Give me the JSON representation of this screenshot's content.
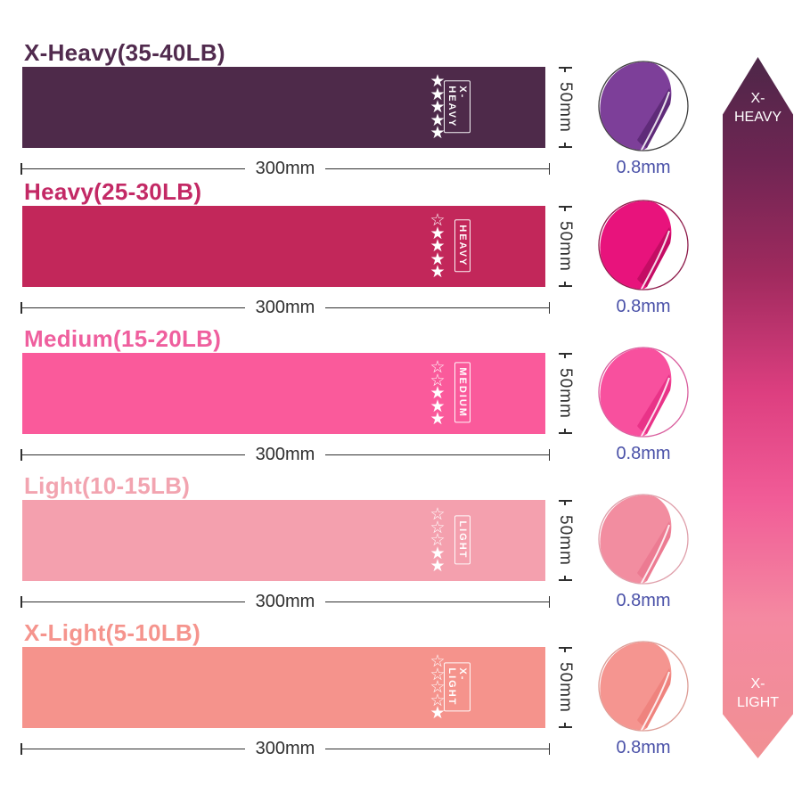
{
  "bands": [
    {
      "title": "X-Heavy(35-40LB)",
      "tag": "X-HEAVY",
      "stars_filled": 5,
      "stars_total": 5,
      "length_label": "300mm",
      "width_label": "50mm",
      "thickness_label": "0.8mm",
      "band_color": "#4e2a4a",
      "title_color": "#512b4e",
      "photo_main": "#7d3f99",
      "photo_dark": "#5f2b79",
      "photo_ring": "#3f3f3f"
    },
    {
      "title": "Heavy(25-30LB)",
      "tag": "HEAVY",
      "stars_filled": 4,
      "stars_total": 5,
      "length_label": "300mm",
      "width_label": "50mm",
      "thickness_label": "0.8mm",
      "band_color": "#c2275a",
      "title_color": "#c32965",
      "photo_main": "#e8137c",
      "photo_dark": "#c40c64",
      "photo_ring": "#8e1c4b"
    },
    {
      "title": "Medium(15-20LB)",
      "tag": "MEDIUM",
      "stars_filled": 3,
      "stars_total": 5,
      "length_label": "300mm",
      "width_label": "50mm",
      "thickness_label": "0.8mm",
      "band_color": "#fa5a9b",
      "title_color": "#ef5f9e",
      "photo_main": "#f8509e",
      "photo_dark": "#e93388",
      "photo_ring": "#d95f9e"
    },
    {
      "title": "Light(10-15LB)",
      "tag": "LIGHT",
      "stars_filled": 2,
      "stars_total": 5,
      "length_label": "300mm",
      "width_label": "50mm",
      "thickness_label": "0.8mm",
      "band_color": "#f4a0ae",
      "title_color": "#f2a4b0",
      "photo_main": "#f28da0",
      "photo_dark": "#ec7b92",
      "photo_ring": "#dfa0ab"
    },
    {
      "title": "X-Light(5-10LB)",
      "tag": "X-LIGHT",
      "stars_filled": 1,
      "stars_total": 5,
      "length_label": "300mm",
      "width_label": "50mm",
      "thickness_label": "0.8mm",
      "band_color": "#f5938c",
      "title_color": "#f5948d",
      "photo_main": "#f59590",
      "photo_dark": "#ef837e",
      "photo_ring": "#dd9d96"
    }
  ],
  "dimensions": {
    "line_color": "#2f2f2f",
    "thickness_color": "#4a51a8"
  },
  "arrow": {
    "top_label": "X-HEAVY",
    "bottom_label": "X-LIGHT",
    "gradient_stops": [
      "#4d2748 0%",
      "#6f2553 15%",
      "#a02a5e 31%",
      "#dd3f80 48%",
      "#f15c97 63%",
      "#f489a1 80%",
      "#f19093 100%"
    ]
  }
}
